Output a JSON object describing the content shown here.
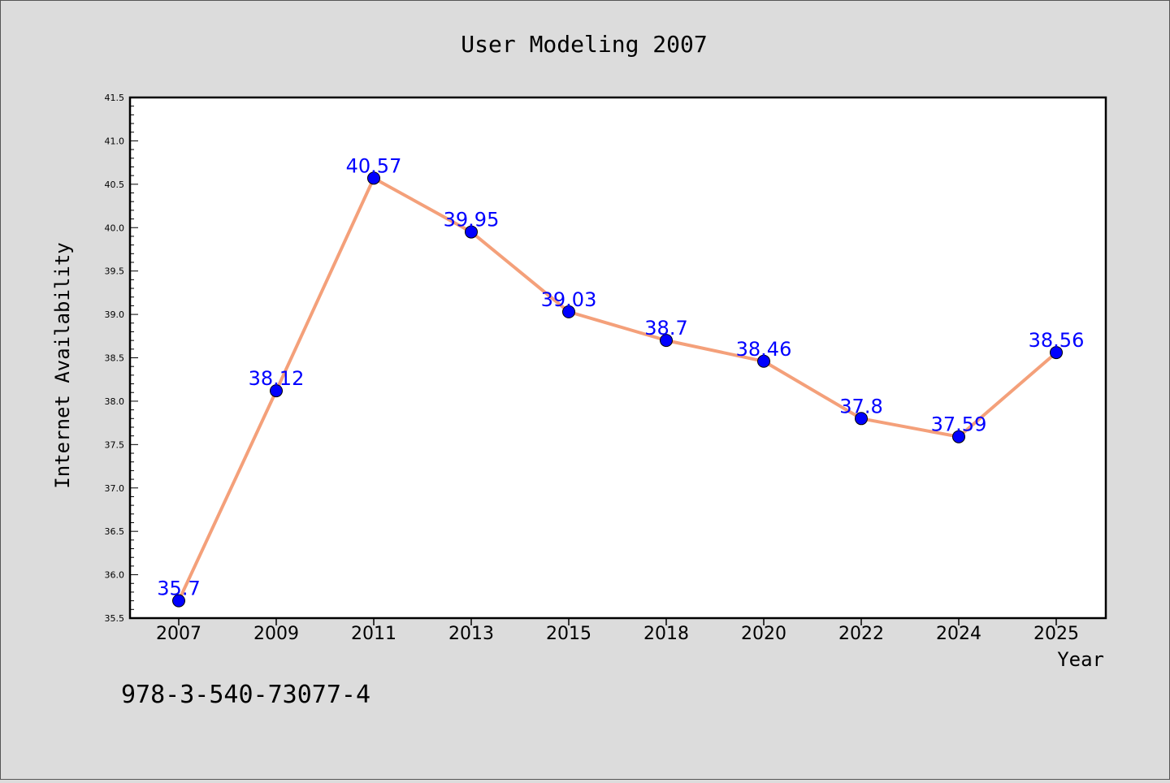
{
  "chart_data": {
    "type": "line",
    "title": "User Modeling 2007",
    "xlabel": "Year",
    "ylabel": "Internet Availability",
    "categories": [
      "2007",
      "2009",
      "2011",
      "2013",
      "2015",
      "2018",
      "2020",
      "2022",
      "2024",
      "2025"
    ],
    "series": [
      {
        "values": [
          35.7,
          38.12,
          40.57,
          39.95,
          39.03,
          38.7,
          38.46,
          37.8,
          37.59,
          38.56
        ],
        "labels": [
          "35.7",
          "38.12",
          "40.57",
          "39.95",
          "39.03",
          "38.7",
          "38.46",
          "37.8",
          "37.59",
          "38.56"
        ]
      }
    ],
    "ylim": [
      35.5,
      41.5
    ],
    "yticks": [
      "35.5",
      "36.0",
      "36.5",
      "37.0",
      "37.5",
      "38.0",
      "38.5",
      "39.0",
      "39.5",
      "40.0",
      "40.5",
      "41.0",
      "41.5"
    ],
    "grid": false,
    "line_color": "#f4a07a",
    "marker_color": "#0000ff",
    "label_color": "#0000ff",
    "annotation": "978-3-540-73077-4"
  }
}
